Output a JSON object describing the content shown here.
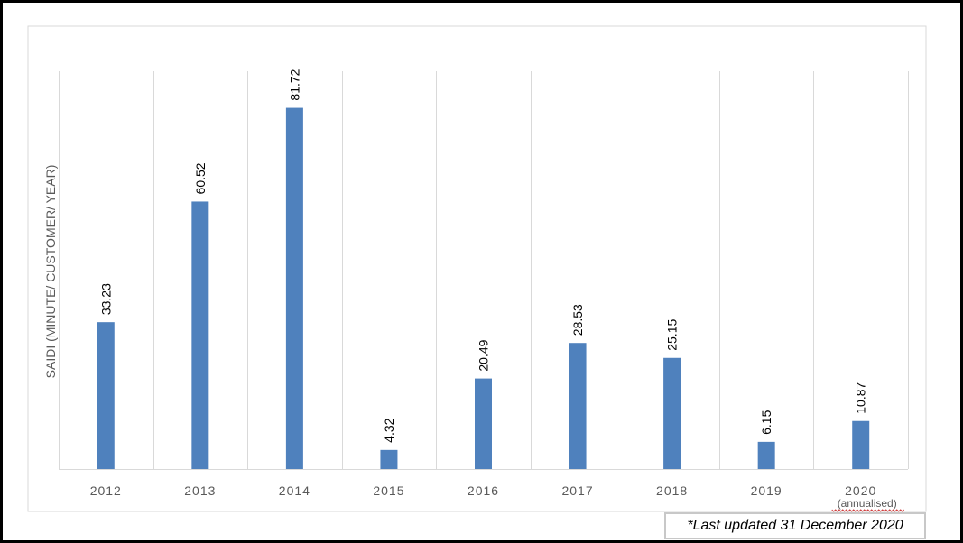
{
  "chart_data": {
    "type": "bar",
    "title": "",
    "xlabel": "",
    "ylabel": "SAIDI (MINUTE/ CUSTOMER/ YEAR)",
    "ylim": [
      0,
      90
    ],
    "grid": {
      "vertical": true,
      "horizontal": false
    },
    "bar_color": "#4f81bd",
    "categories": [
      "2012",
      "2013",
      "2014",
      "2015",
      "2016",
      "2017",
      "2018",
      "2019",
      "2020"
    ],
    "category_sublabels": [
      "",
      "",
      "",
      "",
      "",
      "",
      "",
      "",
      "(annualised)"
    ],
    "values": [
      33.23,
      60.52,
      81.72,
      4.32,
      20.49,
      28.53,
      25.15,
      6.15,
      10.87
    ],
    "data_labels": [
      "33.23",
      "60.52",
      "81.72",
      "4.32",
      "20.49",
      "28.53",
      "25.15",
      "6.15",
      "10.87"
    ]
  },
  "note": "*Last updated 31 December 2020"
}
